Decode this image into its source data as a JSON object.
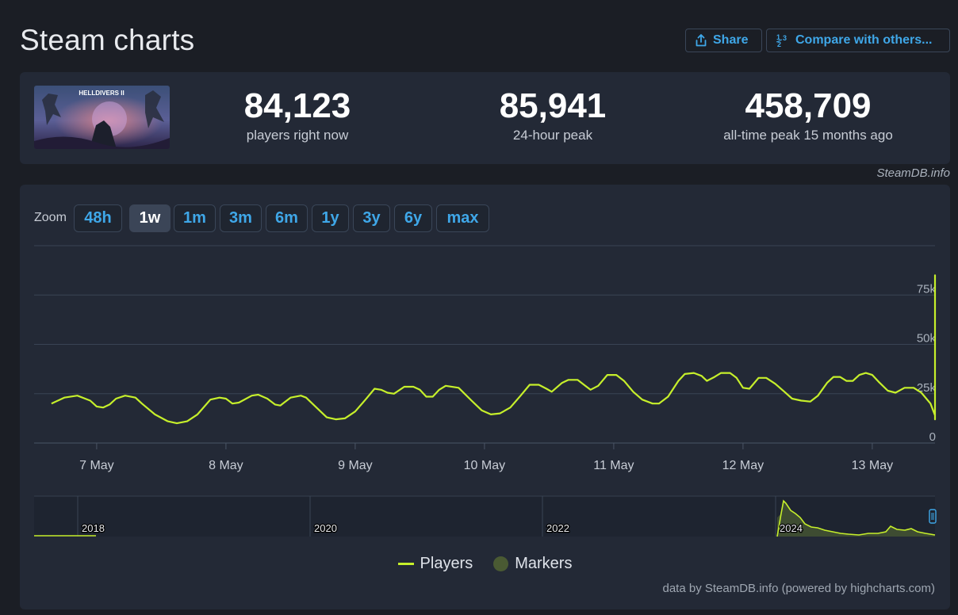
{
  "title": "Steam charts",
  "actions": {
    "share_label": "Share",
    "compare_label": "Compare with others..."
  },
  "stats": [
    {
      "value": "84,123",
      "label": "players right now"
    },
    {
      "value": "85,941",
      "label": "24-hour peak"
    },
    {
      "value": "458,709",
      "label": "all-time peak 15 months ago"
    }
  ],
  "game_image_text": "HELLDIVERS II",
  "credit_top": "SteamDB.info",
  "zoom": {
    "label": "Zoom",
    "buttons": [
      "48h",
      "1w",
      "1m",
      "3m",
      "6m",
      "1y",
      "3y",
      "6y",
      "max"
    ],
    "active": "1w"
  },
  "legend": {
    "players": "Players",
    "markers": "Markers"
  },
  "credit_bottom": "data by SteamDB.info (powered by highcharts.com)",
  "colors": {
    "background": "#1b1e25",
    "panel": "#232936",
    "accent": "#3fa7e8",
    "players_line": "#c6ef2b",
    "markers": "#4a5a33"
  },
  "chart_data": {
    "type": "line",
    "series_name": "Players",
    "x_axis_labels": [
      "7 May",
      "8 May",
      "9 May",
      "10 May",
      "11 May",
      "12 May",
      "13 May"
    ],
    "y_axis_labels": [
      "0",
      "25k",
      "50k",
      "75k"
    ],
    "y_axis_side": "right",
    "ylim": [
      0,
      100000
    ],
    "x_days_range": [
      -0.35,
      6.65
    ],
    "points": [
      [
        -0.35,
        20000
      ],
      [
        -0.25,
        23000
      ],
      [
        -0.15,
        24000
      ],
      [
        -0.05,
        21500
      ],
      [
        0.0,
        18500
      ],
      [
        0.05,
        18000
      ],
      [
        0.1,
        19500
      ],
      [
        0.15,
        22500
      ],
      [
        0.22,
        24000
      ],
      [
        0.3,
        23000
      ],
      [
        0.35,
        20000
      ],
      [
        0.45,
        14500
      ],
      [
        0.55,
        11000
      ],
      [
        0.62,
        10000
      ],
      [
        0.7,
        11000
      ],
      [
        0.78,
        14500
      ],
      [
        0.88,
        22000
      ],
      [
        0.95,
        23000
      ],
      [
        1.0,
        22500
      ],
      [
        1.05,
        20000
      ],
      [
        1.1,
        20500
      ],
      [
        1.2,
        24000
      ],
      [
        1.25,
        24500
      ],
      [
        1.32,
        22500
      ],
      [
        1.38,
        19500
      ],
      [
        1.42,
        19000
      ],
      [
        1.5,
        23000
      ],
      [
        1.58,
        24000
      ],
      [
        1.62,
        23000
      ],
      [
        1.7,
        18000
      ],
      [
        1.78,
        13000
      ],
      [
        1.85,
        12000
      ],
      [
        1.92,
        12500
      ],
      [
        2.0,
        16000
      ],
      [
        2.08,
        22000
      ],
      [
        2.15,
        27500
      ],
      [
        2.2,
        27000
      ],
      [
        2.25,
        25500
      ],
      [
        2.3,
        25000
      ],
      [
        2.38,
        28500
      ],
      [
        2.45,
        28500
      ],
      [
        2.5,
        27000
      ],
      [
        2.55,
        23500
      ],
      [
        2.6,
        23500
      ],
      [
        2.65,
        27000
      ],
      [
        2.7,
        29000
      ],
      [
        2.8,
        28000
      ],
      [
        2.9,
        21500
      ],
      [
        2.98,
        16500
      ],
      [
        3.05,
        14500
      ],
      [
        3.12,
        15000
      ],
      [
        3.2,
        18000
      ],
      [
        3.28,
        24000
      ],
      [
        3.35,
        29500
      ],
      [
        3.42,
        29500
      ],
      [
        3.48,
        27500
      ],
      [
        3.52,
        26000
      ],
      [
        3.6,
        30500
      ],
      [
        3.65,
        32000
      ],
      [
        3.72,
        32000
      ],
      [
        3.78,
        29000
      ],
      [
        3.82,
        27000
      ],
      [
        3.88,
        29000
      ],
      [
        3.95,
        34500
      ],
      [
        4.02,
        34500
      ],
      [
        4.08,
        31500
      ],
      [
        4.15,
        26000
      ],
      [
        4.22,
        22000
      ],
      [
        4.3,
        20000
      ],
      [
        4.35,
        20000
      ],
      [
        4.42,
        23500
      ],
      [
        4.5,
        31500
      ],
      [
        4.55,
        35000
      ],
      [
        4.62,
        35500
      ],
      [
        4.68,
        34000
      ],
      [
        4.72,
        31500
      ],
      [
        4.78,
        33500
      ],
      [
        4.83,
        35500
      ],
      [
        4.9,
        35500
      ],
      [
        4.95,
        33000
      ],
      [
        5.0,
        28000
      ],
      [
        5.05,
        27500
      ],
      [
        5.12,
        33000
      ],
      [
        5.18,
        33000
      ],
      [
        5.25,
        30000
      ],
      [
        5.32,
        26000
      ],
      [
        5.38,
        22500
      ],
      [
        5.45,
        21500
      ],
      [
        5.52,
        21000
      ],
      [
        5.58,
        24000
      ],
      [
        5.65,
        30500
      ],
      [
        5.7,
        33500
      ],
      [
        5.75,
        33500
      ],
      [
        5.8,
        31500
      ],
      [
        5.85,
        31500
      ],
      [
        5.9,
        34500
      ],
      [
        5.95,
        35500
      ],
      [
        6.0,
        34500
      ],
      [
        6.05,
        31000
      ],
      [
        6.12,
        26500
      ],
      [
        6.18,
        25500
      ],
      [
        6.25,
        28000
      ],
      [
        6.32,
        28000
      ],
      [
        6.38,
        25500
      ],
      [
        6.45,
        20000
      ],
      [
        6.52,
        14000
      ],
      [
        6.6,
        12000
      ],
      [
        6.65,
        12000
      ],
      [
        6.7,
        36000
      ],
      [
        6.78,
        52000
      ],
      [
        6.85,
        60000
      ],
      [
        6.92,
        72000
      ],
      [
        6.98,
        79000
      ],
      [
        7.05,
        84000
      ],
      [
        7.12,
        85000
      ],
      [
        7.18,
        84000
      ]
    ]
  },
  "navigator": {
    "year_labels": [
      "2018",
      "2020",
      "2022",
      "2024"
    ]
  }
}
